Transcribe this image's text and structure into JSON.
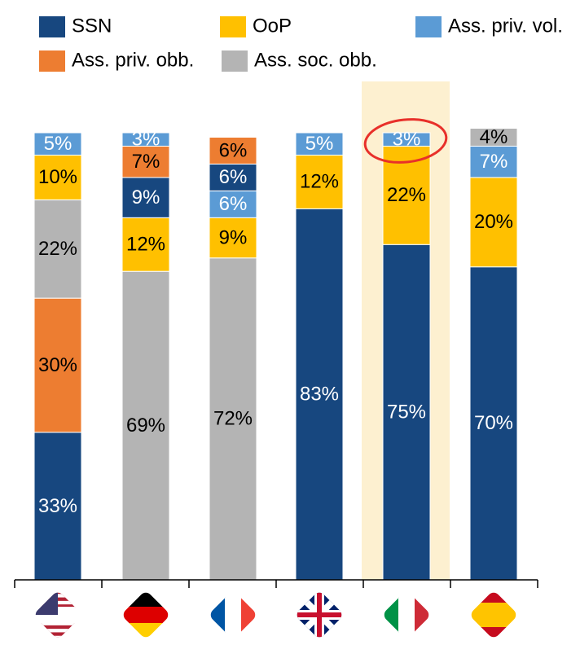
{
  "chart_data": {
    "type": "stacked_bar",
    "categories": [
      null,
      null,
      null,
      null,
      null,
      null
    ],
    "series": [
      {
        "name": "SSN",
        "color": "#17477f",
        "values": [
          33,
          9,
          6,
          83,
          75,
          70
        ],
        "value_labels": [
          "33%",
          "9%",
          "6%",
          "83%",
          "75%",
          "70%"
        ]
      },
      {
        "name": "OoP",
        "color": "#ffc000",
        "values": [
          10,
          12,
          9,
          12,
          22,
          20
        ],
        "value_labels": [
          "10%",
          "12%",
          "9%",
          "12%",
          "22%",
          "20%"
        ]
      },
      {
        "name": "Ass. priv. vol.",
        "color": "#5b9bd5",
        "values": [
          5,
          3,
          6,
          5,
          3,
          7
        ],
        "value_labels": [
          "5%",
          "3%",
          "6%",
          "5%",
          "3%",
          "7%"
        ]
      },
      {
        "name": "Ass. priv. obb.",
        "color": "#ed7d31",
        "values": [
          30,
          7,
          6,
          null,
          null,
          null
        ],
        "value_labels": [
          "30%",
          "7%",
          "6%",
          null,
          null,
          null
        ]
      },
      {
        "name": "Ass. soc. obb.",
        "color": "#b4b4b4",
        "values": [
          22,
          69,
          72,
          null,
          null,
          4
        ],
        "value_labels": [
          "22%",
          "69%",
          "72%",
          null,
          null,
          "4%"
        ]
      }
    ]
  }
}
